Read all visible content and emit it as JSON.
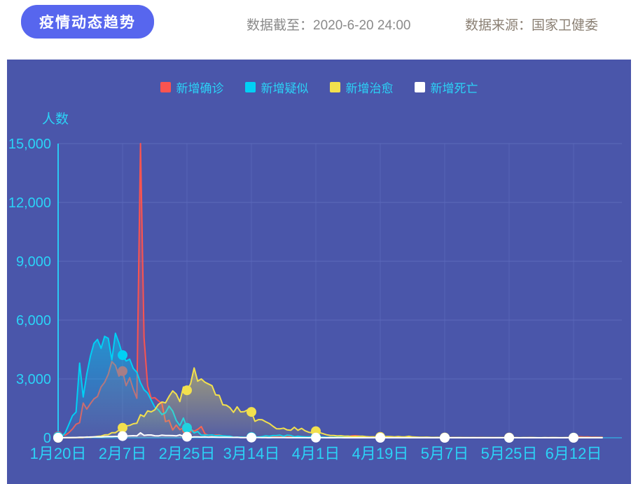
{
  "header": {
    "title": "疫情动态趋势",
    "data_cutoff": "数据截至：2020-6-20 24:00",
    "data_source": "数据来源：国家卫健委"
  },
  "colors": {
    "title_bg": "#5766ee",
    "panel_bg": "#4a56aa",
    "grid": "#5c69bb",
    "axis": "#2bc9f3",
    "tick_text": "#2bd3f7",
    "header_text": "#8a8a8a",
    "source_text": "#8b8074"
  },
  "chart_data": {
    "type": "area",
    "ylabel": "人数",
    "ylim": [
      0,
      15000
    ],
    "y_ticks": [
      0,
      3000,
      6000,
      9000,
      12000,
      15000
    ],
    "grid": true,
    "legend_position": "top",
    "x_start_label": "1月20日",
    "x_tick_interval_days": 18,
    "marker_interval_days": 18,
    "x_tick_labels": [
      "1月20日",
      "2月7日",
      "2月25日",
      "3月14日",
      "4月1日",
      "4月19日",
      "5月7日",
      "5月25日",
      "6月12日"
    ],
    "series": [
      {
        "name": "新增确诊",
        "key": "new-confirmed",
        "color": "#fa5450",
        "values": [
          77,
          149,
          131,
          259,
          444,
          688,
          769,
          1771,
          1459,
          1737,
          1982,
          2102,
          2590,
          2829,
          3235,
          3887,
          3694,
          3143,
          3399,
          2656,
          3062,
          2478,
          2015,
          15152,
          5090,
          2641,
          2009,
          2048,
          1886,
          1749,
          820,
          889,
          397,
          648,
          409,
          508,
          406,
          433,
          327,
          427,
          573,
          202,
          125,
          119,
          139,
          143,
          99,
          44,
          40,
          19,
          24,
          15,
          8,
          11,
          20,
          16,
          21,
          13,
          34,
          39,
          41,
          46,
          39,
          78,
          47,
          67,
          55,
          54,
          45,
          31,
          48,
          36,
          35,
          31,
          19,
          30,
          39,
          32,
          62,
          63,
          42,
          46,
          99,
          108,
          89,
          46,
          46,
          26,
          27,
          16,
          12,
          11,
          30,
          10,
          6,
          12,
          11,
          3,
          6,
          22,
          4,
          12,
          1,
          2,
          3,
          1,
          2,
          2,
          1,
          1,
          14,
          17,
          1,
          7,
          3,
          4,
          8,
          5,
          7,
          6,
          5,
          2,
          4,
          2,
          3,
          11,
          7,
          1,
          2,
          0,
          4,
          2,
          16,
          5,
          1,
          1,
          5,
          3,
          6,
          4,
          3,
          3,
          11,
          7,
          11,
          57,
          49,
          40,
          44,
          28,
          32,
          27,
          26
        ]
      },
      {
        "name": "新增疑似",
        "key": "new-suspected",
        "color": "#00d0f5",
        "values": [
          54,
          53,
          257,
          680,
          1118,
          1309,
          3806,
          2077,
          3248,
          4148,
          4812,
          5019,
          4562,
          5173,
          5072,
          3971,
          5328,
          4833,
          4214,
          3916,
          4008,
          3536,
          3342,
          2807,
          2450,
          2277,
          1918,
          1563,
          1432,
          1185,
          1277,
          1614,
          1361,
          882,
          620,
          1008,
          508,
          452,
          248,
          318,
          132,
          141,
          129,
          143,
          102,
          122,
          99,
          84,
          79,
          31,
          33,
          33,
          21,
          27,
          36,
          41,
          37,
          56,
          100,
          76,
          110,
          118,
          131,
          74,
          134,
          119,
          49,
          80,
          58,
          44,
          42,
          57,
          53,
          44,
          37,
          29,
          26,
          30,
          28,
          36,
          28,
          34,
          31,
          26,
          21,
          34,
          28,
          21,
          17,
          13,
          10,
          12,
          14,
          9,
          7,
          10,
          8,
          6,
          5,
          8,
          3,
          5,
          4,
          3,
          5,
          2,
          3,
          2,
          2,
          1,
          3,
          2,
          2,
          1,
          2,
          1,
          2,
          1,
          1,
          3,
          2,
          1,
          1,
          2,
          1,
          2,
          3,
          1,
          1,
          0,
          2,
          1,
          2,
          2,
          1,
          1,
          2,
          1,
          3,
          2,
          1,
          2,
          3,
          4,
          6,
          10,
          8,
          7,
          5,
          4,
          3,
          2,
          3
        ]
      },
      {
        "name": "新增治愈",
        "key": "new-cured",
        "color": "#f2e04e",
        "values": [
          0,
          0,
          4,
          6,
          3,
          11,
          9,
          12,
          43,
          21,
          47,
          72,
          85,
          147,
          157,
          262,
          261,
          387,
          510,
          600,
          632,
          716,
          744,
          1171,
          1081,
          1373,
          1323,
          1425,
          1701,
          1824,
          1779,
          2109,
          2393,
          2230,
          1846,
          2589,
          2422,
          2750,
          3560,
          2885,
          3000,
          2837,
          2742,
          2652,
          2189,
          2164,
          1681,
          1661,
          1535,
          1297,
          1578,
          1318,
          1335,
          1430,
          1318,
          838,
          930,
          923,
          819,
          730,
          590,
          459,
          456,
          491,
          401,
          382,
          537,
          383,
          477,
          354,
          282,
          252,
          337,
          266,
          212,
          154,
          120,
          118,
          92,
          102,
          82,
          84,
          68,
          70,
          75,
          81,
          56,
          46,
          51,
          47,
          46,
          58,
          63,
          56,
          46,
          61,
          47,
          50,
          74,
          44,
          37,
          27,
          28,
          32,
          21,
          19,
          20,
          15,
          13,
          12,
          10,
          12,
          15,
          9,
          11,
          8,
          10,
          9,
          8,
          12,
          9,
          8,
          7,
          9,
          6,
          8,
          10,
          7,
          6,
          5,
          8,
          6,
          7,
          6,
          5,
          4,
          6,
          5,
          8,
          6,
          5,
          4,
          6,
          8,
          5,
          4,
          6,
          7,
          8,
          6,
          10,
          8,
          9
        ]
      },
      {
        "name": "新增死亡",
        "key": "new-deaths",
        "color": "#ffffff",
        "values": [
          2,
          3,
          8,
          8,
          16,
          15,
          24,
          26,
          26,
          38,
          43,
          46,
          45,
          57,
          64,
          65,
          73,
          73,
          86,
          89,
          97,
          108,
          97,
          254,
          121,
          143,
          142,
          105,
          98,
          136,
          114,
          118,
          109,
          97,
          150,
          71,
          52,
          29,
          44,
          47,
          35,
          42,
          31,
          38,
          31,
          30,
          28,
          27,
          22,
          17,
          22,
          11,
          7,
          13,
          10,
          14,
          13,
          11,
          8,
          3,
          7,
          6,
          9,
          7,
          4,
          5,
          5,
          3,
          5,
          5,
          1,
          7,
          6,
          4,
          4,
          1,
          3,
          0,
          2,
          2,
          1,
          3,
          0,
          0,
          1,
          0,
          0,
          0,
          0,
          0,
          0,
          0,
          0,
          0,
          0,
          0,
          0,
          0,
          0,
          0,
          0,
          0,
          0,
          0,
          0,
          0,
          0,
          0,
          0,
          0,
          0,
          0,
          0,
          0,
          0,
          0,
          0,
          0,
          0,
          0,
          0,
          0,
          0,
          0,
          0,
          0,
          0,
          0,
          0,
          0,
          0,
          0,
          0,
          0,
          0,
          0,
          0,
          0,
          0,
          0,
          0,
          0,
          0,
          0,
          0,
          0,
          0,
          0,
          0,
          0,
          0,
          0,
          0
        ]
      }
    ]
  }
}
